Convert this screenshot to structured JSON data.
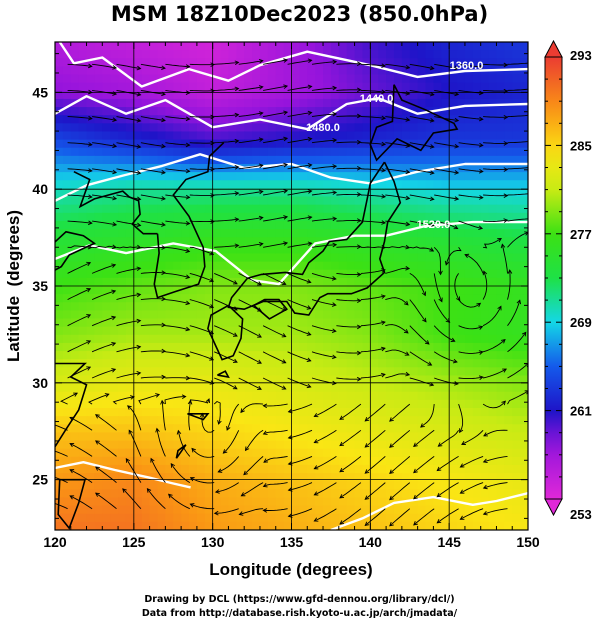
{
  "title": "MSM 18Z10Dec2023 (850.0hPa)",
  "credits": {
    "line1": "Drawing by DCL (https://www.gfd-dennou.org/library/dcl/)",
    "line2": "Data from http://database.rish.kyoto-u.ac.jp/arch/jmadata/"
  },
  "chart_data": {
    "type": "heatmap",
    "title": "MSM 18Z10Dec2023 (850.0hPa)",
    "xlabel": "Longitude (degrees)",
    "ylabel": "Latitude  (degrees)",
    "xlim": [
      120,
      150
    ],
    "ylim": [
      22.4,
      47.6
    ],
    "xticks": [
      120,
      125,
      130,
      135,
      140,
      145,
      150
    ],
    "yticks": [
      25,
      30,
      35,
      40,
      45
    ],
    "grid": true,
    "colorbar": {
      "min": 253,
      "max": 293,
      "ticks": [
        253,
        261,
        269,
        277,
        285,
        293
      ],
      "colormap": "rainbow (magenta-blue-cyan-green-yellow-red)"
    },
    "field": "temperature (K)",
    "temperature_field": {
      "lon": [
        120,
        125,
        130,
        135,
        140,
        145,
        150
      ],
      "lat": [
        47.5,
        45,
        42.5,
        40,
        37.5,
        35,
        32.5,
        30,
        27.5,
        25,
        22.5
      ],
      "values": [
        [
          256,
          255,
          254,
          257,
          260,
          262,
          263
        ],
        [
          258,
          257,
          255,
          257,
          259,
          261,
          262
        ],
        [
          264,
          262,
          260,
          261,
          262,
          263,
          263
        ],
        [
          270,
          271,
          271,
          271,
          270,
          269,
          269
        ],
        [
          274,
          275,
          276,
          276,
          275,
          274,
          273
        ],
        [
          277,
          278,
          279,
          279,
          278,
          277,
          276
        ],
        [
          279,
          280,
          280,
          280,
          279,
          277,
          276
        ],
        [
          282,
          283,
          283,
          282,
          281,
          280,
          279
        ],
        [
          286,
          286,
          285,
          284,
          283,
          282,
          281
        ],
        [
          288,
          289,
          287,
          286,
          285,
          284,
          283
        ],
        [
          290,
          290,
          288,
          287,
          286,
          285,
          284
        ]
      ]
    },
    "contour_labels": [
      "1360.0",
      "1440.0",
      "1480.0",
      "1520.0"
    ],
    "overlay": "wind streamlines"
  },
  "colors": {
    "contour": "#ffffff",
    "streamline": "#000000",
    "coastline": "#000000",
    "grid": "#000000"
  }
}
